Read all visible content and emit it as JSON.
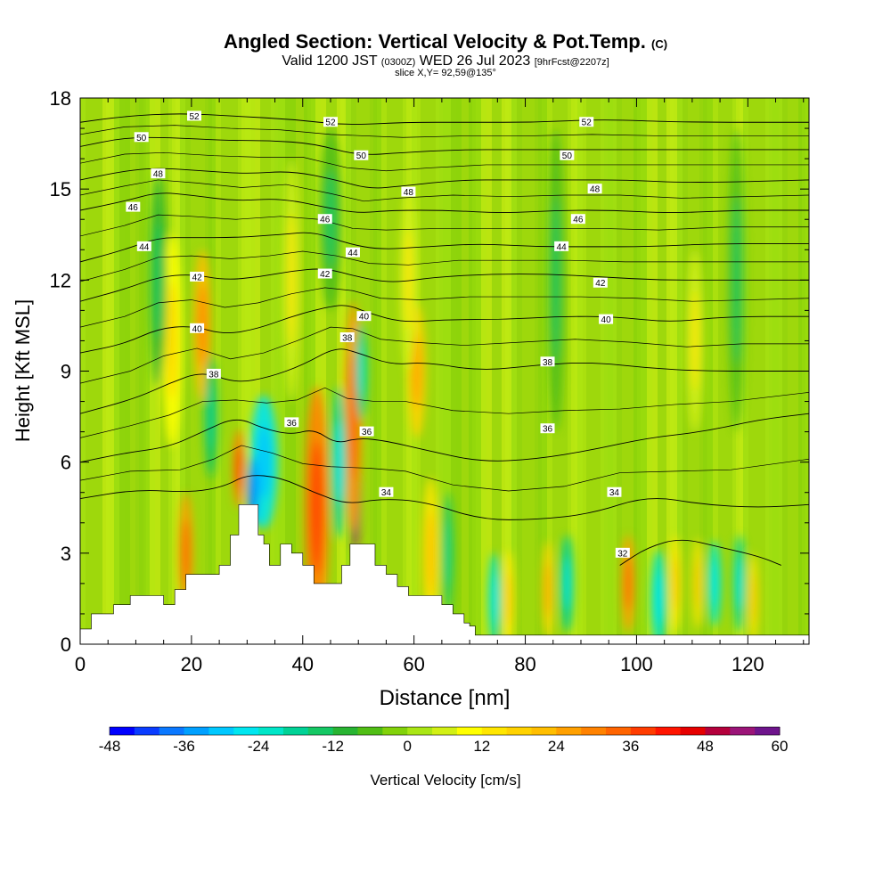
{
  "title": {
    "main": "Angled Section: Vertical Velocity & Pot.Temp.",
    "mark": "(C)",
    "valid_prefix": "Valid 1200 JST",
    "valid_utc": "(0300Z)",
    "valid_date": "WED 26 Jul 2023",
    "forecast": "[9hrFcst@2207z]",
    "slice": "slice X,Y= 92,59@135°"
  },
  "chart_data": {
    "type": "heatmap",
    "xlabel": "Distance [nm]",
    "ylabel": "Height [Kft MSL]",
    "xlim": [
      0,
      131
    ],
    "ylim": [
      0,
      18
    ],
    "x_ticks": [
      0,
      20,
      40,
      60,
      80,
      100,
      120
    ],
    "y_ticks": [
      0,
      3,
      6,
      9,
      12,
      15,
      18
    ],
    "colorbar": {
      "label": "Vertical Velocity [cm/s]",
      "min": -48,
      "max": 60,
      "step": 4,
      "ticks": [
        -48,
        -36,
        -24,
        -12,
        0,
        12,
        24,
        36,
        48,
        60
      ],
      "colors": [
        "#0000ff",
        "#0a3cff",
        "#0a78ff",
        "#00a0ff",
        "#00c8ff",
        "#00e6f0",
        "#00e6c8",
        "#00d296",
        "#14c864",
        "#28b432",
        "#50be14",
        "#82d20a",
        "#aae614",
        "#d2f014",
        "#ffff00",
        "#ffe600",
        "#ffd200",
        "#ffbe00",
        "#ffa000",
        "#ff8200",
        "#ff6400",
        "#ff3c00",
        "#ff1400",
        "#e60000",
        "#b4003c",
        "#9b1478",
        "#6e148c"
      ]
    },
    "terrain_kft": [
      [
        0,
        0.5
      ],
      [
        2,
        1
      ],
      [
        6,
        1.3
      ],
      [
        9,
        1.6
      ],
      [
        13,
        1.6
      ],
      [
        15,
        1.3
      ],
      [
        17,
        1.8
      ],
      [
        19,
        2.3
      ],
      [
        23,
        2.3
      ],
      [
        25,
        2.6
      ],
      [
        27,
        3.6
      ],
      [
        28.5,
        4.6
      ],
      [
        31,
        4.6
      ],
      [
        32,
        3.6
      ],
      [
        33,
        3.3
      ],
      [
        34,
        2.6
      ],
      [
        36,
        3.3
      ],
      [
        38,
        3.0
      ],
      [
        40,
        2.6
      ],
      [
        42,
        2.0
      ],
      [
        45,
        2.0
      ],
      [
        47,
        2.6
      ],
      [
        48.5,
        3.3
      ],
      [
        51,
        3.3
      ],
      [
        53,
        2.6
      ],
      [
        55,
        2.3
      ],
      [
        57,
        1.9
      ],
      [
        59,
        1.6
      ],
      [
        62,
        1.6
      ],
      [
        65,
        1.3
      ],
      [
        67,
        1.0
      ],
      [
        69,
        0.7
      ],
      [
        70,
        0.6
      ],
      [
        71,
        0.3
      ],
      [
        131,
        0.3
      ]
    ],
    "theta_contours": [
      {
        "label": "32",
        "points": [
          [
            97,
            2.6
          ],
          [
            102,
            3.2
          ],
          [
            108,
            3.5
          ],
          [
            115,
            3.2
          ],
          [
            122,
            2.9
          ],
          [
            126,
            2.6
          ]
        ]
      },
      {
        "label": "34",
        "points": [
          [
            0,
            4.8
          ],
          [
            10,
            5.1
          ],
          [
            20,
            5.0
          ],
          [
            26,
            5.2
          ],
          [
            30,
            5.6
          ],
          [
            36,
            5.5
          ],
          [
            42,
            5.0
          ],
          [
            48,
            4.6
          ],
          [
            54,
            4.8
          ],
          [
            62,
            4.7
          ],
          [
            72,
            4.1
          ],
          [
            82,
            4.1
          ],
          [
            92,
            4.3
          ],
          [
            102,
            4.9
          ],
          [
            112,
            4.6
          ],
          [
            122,
            4.5
          ],
          [
            131,
            4.6
          ]
        ]
      },
      {
        "label": "36",
        "points": [
          [
            0,
            6.0
          ],
          [
            8,
            6.3
          ],
          [
            16,
            6.5
          ],
          [
            22,
            7.0
          ],
          [
            28,
            7.5
          ],
          [
            33,
            7.1
          ],
          [
            38,
            6.9
          ],
          [
            42,
            7.1
          ],
          [
            46,
            6.6
          ],
          [
            50,
            6.8
          ],
          [
            55,
            6.7
          ],
          [
            62,
            6.4
          ],
          [
            72,
            6.0
          ],
          [
            82,
            6.1
          ],
          [
            92,
            6.4
          ],
          [
            102,
            6.8
          ],
          [
            112,
            7.0
          ],
          [
            122,
            7.4
          ],
          [
            131,
            7.6
          ]
        ]
      },
      {
        "label": "38",
        "points": [
          [
            0,
            7.6
          ],
          [
            10,
            8.1
          ],
          [
            16,
            8.6
          ],
          [
            22,
            9.0
          ],
          [
            28,
            8.6
          ],
          [
            34,
            8.8
          ],
          [
            40,
            9.2
          ],
          [
            46,
            9.8
          ],
          [
            50,
            9.6
          ],
          [
            56,
            9.2
          ],
          [
            62,
            9.3
          ],
          [
            72,
            9.0
          ],
          [
            82,
            9.2
          ],
          [
            92,
            9.3
          ],
          [
            102,
            9.1
          ],
          [
            112,
            9.0
          ],
          [
            122,
            9.0
          ],
          [
            131,
            9.0
          ]
        ]
      },
      {
        "label": "40",
        "points": [
          [
            0,
            9.6
          ],
          [
            8,
            9.9
          ],
          [
            14,
            10.4
          ],
          [
            20,
            10.5
          ],
          [
            26,
            10.2
          ],
          [
            32,
            10.4
          ],
          [
            38,
            10.8
          ],
          [
            44,
            11.1
          ],
          [
            48,
            11.2
          ],
          [
            52,
            10.9
          ],
          [
            58,
            10.6
          ],
          [
            66,
            10.7
          ],
          [
            76,
            10.7
          ],
          [
            86,
            10.8
          ],
          [
            96,
            10.8
          ],
          [
            106,
            10.6
          ],
          [
            116,
            10.8
          ],
          [
            131,
            10.8
          ]
        ]
      },
      {
        "label": "42",
        "points": [
          [
            0,
            11.3
          ],
          [
            8,
            11.7
          ],
          [
            14,
            12.1
          ],
          [
            20,
            12.2
          ],
          [
            26,
            12.0
          ],
          [
            32,
            12.1
          ],
          [
            38,
            12.3
          ],
          [
            44,
            12.4
          ],
          [
            50,
            12.1
          ],
          [
            56,
            11.9
          ],
          [
            64,
            12.1
          ],
          [
            74,
            12.2
          ],
          [
            84,
            12.2
          ],
          [
            94,
            12.1
          ],
          [
            104,
            12.0
          ],
          [
            114,
            12.0
          ],
          [
            131,
            12.0
          ]
        ]
      },
      {
        "label": "44",
        "points": [
          [
            0,
            12.6
          ],
          [
            8,
            13.0
          ],
          [
            14,
            13.4
          ],
          [
            20,
            13.4
          ],
          [
            28,
            13.4
          ],
          [
            36,
            13.5
          ],
          [
            42,
            13.6
          ],
          [
            48,
            13.2
          ],
          [
            54,
            13.0
          ],
          [
            62,
            13.1
          ],
          [
            72,
            13.2
          ],
          [
            82,
            13.1
          ],
          [
            92,
            13.1
          ],
          [
            102,
            13.1
          ],
          [
            114,
            13.2
          ],
          [
            131,
            13.2
          ]
        ]
      },
      {
        "label": "46",
        "points": [
          [
            0,
            14.3
          ],
          [
            8,
            14.6
          ],
          [
            14,
            14.9
          ],
          [
            20,
            14.8
          ],
          [
            28,
            14.6
          ],
          [
            36,
            14.7
          ],
          [
            44,
            14.4
          ],
          [
            50,
            14.2
          ],
          [
            56,
            14.3
          ],
          [
            66,
            14.3
          ],
          [
            76,
            14.2
          ],
          [
            86,
            14.3
          ],
          [
            96,
            14.3
          ],
          [
            106,
            14.2
          ],
          [
            118,
            14.3
          ],
          [
            131,
            14.3
          ]
        ]
      },
      {
        "label": "48",
        "points": [
          [
            0,
            15.3
          ],
          [
            8,
            15.6
          ],
          [
            14,
            15.7
          ],
          [
            22,
            15.6
          ],
          [
            30,
            15.5
          ],
          [
            38,
            15.6
          ],
          [
            46,
            15.3
          ],
          [
            52,
            15.0
          ],
          [
            58,
            15.1
          ],
          [
            68,
            15.3
          ],
          [
            78,
            15.3
          ],
          [
            88,
            15.3
          ],
          [
            98,
            15.3
          ],
          [
            110,
            15.2
          ],
          [
            131,
            15.3
          ]
        ]
      },
      {
        "label": "50",
        "points": [
          [
            0,
            16.4
          ],
          [
            8,
            16.7
          ],
          [
            16,
            16.7
          ],
          [
            26,
            16.6
          ],
          [
            34,
            16.6
          ],
          [
            42,
            16.5
          ],
          [
            50,
            16.1
          ],
          [
            58,
            16.2
          ],
          [
            68,
            16.3
          ],
          [
            78,
            16.3
          ],
          [
            90,
            16.3
          ],
          [
            102,
            16.3
          ],
          [
            116,
            16.3
          ],
          [
            131,
            16.3
          ]
        ]
      },
      {
        "label": "52",
        "points": [
          [
            0,
            17.2
          ],
          [
            8,
            17.4
          ],
          [
            18,
            17.5
          ],
          [
            28,
            17.4
          ],
          [
            38,
            17.3
          ],
          [
            48,
            17.1
          ],
          [
            58,
            17.2
          ],
          [
            70,
            17.2
          ],
          [
            82,
            17.2
          ],
          [
            94,
            17.3
          ],
          [
            108,
            17.2
          ],
          [
            131,
            17.2
          ]
        ]
      }
    ],
    "contour_labels": [
      {
        "text": "52",
        "x": 20.5,
        "y": 17.4
      },
      {
        "text": "52",
        "x": 45,
        "y": 17.2
      },
      {
        "text": "52",
        "x": 91,
        "y": 17.2
      },
      {
        "text": "50",
        "x": 11,
        "y": 16.7
      },
      {
        "text": "50",
        "x": 50.5,
        "y": 16.1
      },
      {
        "text": "50",
        "x": 87.5,
        "y": 16.1
      },
      {
        "text": "48",
        "x": 14,
        "y": 15.5
      },
      {
        "text": "48",
        "x": 59,
        "y": 14.9
      },
      {
        "text": "48",
        "x": 92.5,
        "y": 15.0
      },
      {
        "text": "46",
        "x": 9.5,
        "y": 14.4
      },
      {
        "text": "46",
        "x": 44,
        "y": 14.0
      },
      {
        "text": "46",
        "x": 89.5,
        "y": 14.0
      },
      {
        "text": "44",
        "x": 11.5,
        "y": 13.1
      },
      {
        "text": "44",
        "x": 49,
        "y": 12.9
      },
      {
        "text": "44",
        "x": 86.5,
        "y": 13.1
      },
      {
        "text": "42",
        "x": 21,
        "y": 12.1
      },
      {
        "text": "42",
        "x": 44,
        "y": 12.2
      },
      {
        "text": "42",
        "x": 93.5,
        "y": 11.9
      },
      {
        "text": "40",
        "x": 21,
        "y": 10.4
      },
      {
        "text": "40",
        "x": 51,
        "y": 10.8
      },
      {
        "text": "40",
        "x": 94.5,
        "y": 10.7
      },
      {
        "text": "38",
        "x": 24,
        "y": 8.9
      },
      {
        "text": "38",
        "x": 48,
        "y": 10.1
      },
      {
        "text": "38",
        "x": 84,
        "y": 9.3
      },
      {
        "text": "36",
        "x": 38,
        "y": 7.3
      },
      {
        "text": "36",
        "x": 51.5,
        "y": 7.0
      },
      {
        "text": "36",
        "x": 84,
        "y": 7.1
      },
      {
        "text": "34",
        "x": 55,
        "y": 5.0
      },
      {
        "text": "34",
        "x": 96,
        "y": 5.0
      },
      {
        "text": "32",
        "x": 97.5,
        "y": 3.0
      }
    ],
    "velocity_features": [
      {
        "x": 49.5,
        "y": 6.0,
        "w": 0.9,
        "h": 2.9,
        "v": 54
      },
      {
        "x": 49.0,
        "y": 7.5,
        "w": 1.6,
        "h": 3.8,
        "v": 26
      },
      {
        "x": 42.5,
        "y": 4.5,
        "w": 2.2,
        "h": 4.0,
        "v": 30
      },
      {
        "x": 22.0,
        "y": 10.5,
        "w": 1.6,
        "h": 2.5,
        "v": 20
      },
      {
        "x": 19.0,
        "y": 3.0,
        "w": 1.3,
        "h": 2.0,
        "v": 24
      },
      {
        "x": 60.5,
        "y": 9.0,
        "w": 1.6,
        "h": 2.2,
        "v": 16
      },
      {
        "x": 28.5,
        "y": 5.8,
        "w": 1.0,
        "h": 1.3,
        "v": 28
      },
      {
        "x": 16.5,
        "y": 10.0,
        "w": 1.8,
        "h": 3.5,
        "v": 8
      },
      {
        "x": 38.0,
        "y": 12.0,
        "w": 1.5,
        "h": 4.0,
        "v": 6
      },
      {
        "x": 59.0,
        "y": 12.0,
        "w": 1.5,
        "h": 3.0,
        "v": 6
      },
      {
        "x": 63.0,
        "y": 3.0,
        "w": 1.5,
        "h": 2.5,
        "v": 14
      },
      {
        "x": 77.0,
        "y": 1.5,
        "w": 1.0,
        "h": 1.6,
        "v": 14
      },
      {
        "x": 84.0,
        "y": 1.8,
        "w": 1.0,
        "h": 1.6,
        "v": 16
      },
      {
        "x": 98.5,
        "y": 2.0,
        "w": 1.2,
        "h": 1.6,
        "v": 26
      },
      {
        "x": 107.0,
        "y": 2.0,
        "w": 1.0,
        "h": 1.6,
        "v": 14
      },
      {
        "x": 111.0,
        "y": 2.0,
        "w": 0.9,
        "h": 1.5,
        "v": 14
      },
      {
        "x": 110.5,
        "y": 10.0,
        "w": 1.5,
        "h": 3.0,
        "v": 6
      },
      {
        "x": 121.0,
        "y": 1.5,
        "w": 0.9,
        "h": 1.5,
        "v": 12
      },
      {
        "x": 33.0,
        "y": 6.0,
        "w": 2.5,
        "h": 2.2,
        "v": -26
      },
      {
        "x": 31.0,
        "y": 5.0,
        "w": 1.0,
        "h": 1.2,
        "v": -34
      },
      {
        "x": 46.5,
        "y": 6.0,
        "w": 1.4,
        "h": 2.5,
        "v": -20
      },
      {
        "x": 50.5,
        "y": 9.0,
        "w": 1.1,
        "h": 1.6,
        "v": -18
      },
      {
        "x": 23.5,
        "y": 7.5,
        "w": 1.2,
        "h": 2.0,
        "v": -14
      },
      {
        "x": 74.5,
        "y": 1.5,
        "w": 1.1,
        "h": 1.5,
        "v": -22
      },
      {
        "x": 87.5,
        "y": 2.0,
        "w": 1.2,
        "h": 1.6,
        "v": -20
      },
      {
        "x": 104.0,
        "y": 1.5,
        "w": 1.4,
        "h": 1.6,
        "v": -22
      },
      {
        "x": 114.0,
        "y": 2.0,
        "w": 1.2,
        "h": 1.4,
        "v": -22
      },
      {
        "x": 118.5,
        "y": 2.0,
        "w": 1.1,
        "h": 1.6,
        "v": -20
      },
      {
        "x": 66.0,
        "y": 3.0,
        "w": 1.0,
        "h": 2.0,
        "v": -14
      },
      {
        "x": 14.0,
        "y": 12.0,
        "w": 1.5,
        "h": 3.5,
        "v": -10
      },
      {
        "x": 45.0,
        "y": 14.0,
        "w": 2.0,
        "h": 3.0,
        "v": -8
      },
      {
        "x": 85.5,
        "y": 12.0,
        "w": 1.5,
        "h": 5.0,
        "v": -8
      },
      {
        "x": 118.0,
        "y": 12.0,
        "w": 1.5,
        "h": 5.0,
        "v": -8
      }
    ]
  }
}
